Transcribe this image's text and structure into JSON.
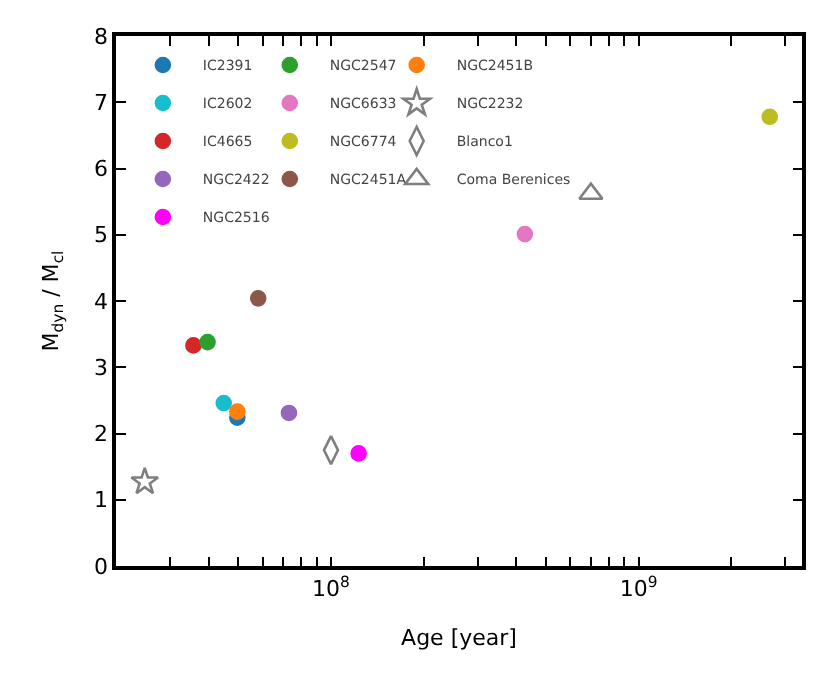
{
  "chart_data": {
    "type": "scatter",
    "xlabel": "Age [year]",
    "ylabel": "M$_{dyn}$ / M$_{cl}$",
    "log": "x",
    "legend": "top left",
    "xlim": [
      20000000.0,
      3400000000.0
    ],
    "ylim": [
      0,
      8
    ],
    "yticks": [
      0,
      1,
      2,
      3,
      4,
      5,
      6,
      7,
      8
    ],
    "xticks": [
      {
        "value": 20000000.0,
        "label": null
      },
      {
        "value": 30000000.0,
        "label": null
      },
      {
        "value": 40000000.0,
        "label": null
      },
      {
        "value": 50000000.0,
        "label": null
      },
      {
        "value": 60000000.0,
        "label": null
      },
      {
        "value": 70000000.0,
        "label": null
      },
      {
        "value": 80000000.0,
        "label": null
      },
      {
        "value": 90000000.0,
        "label": null
      },
      {
        "value": 100000000.0,
        "label": "10$^{8}$"
      },
      {
        "value": 200000000.0,
        "label": null
      },
      {
        "value": 300000000.0,
        "label": null
      },
      {
        "value": 400000000.0,
        "label": null
      },
      {
        "value": 500000000.0,
        "label": null
      },
      {
        "value": 600000000.0,
        "label": null
      },
      {
        "value": 700000000.0,
        "label": null
      },
      {
        "value": 800000000.0,
        "label": null
      },
      {
        "value": 900000000.0,
        "label": null
      },
      {
        "value": 1000000000.0,
        "label": "10$^{9}$"
      },
      {
        "value": 2000000000.0,
        "label": null
      },
      {
        "value": 3000000000.0,
        "label": null
      }
    ],
    "series": [
      {
        "name": "IC2391",
        "color": "#1f77b4",
        "marker": "circle",
        "x": [
          49600000.0
        ],
        "values": [
          2.24
        ]
      },
      {
        "name": "IC2602",
        "color": "#17becf",
        "marker": "circle",
        "x": [
          44800000.0
        ],
        "values": [
          2.46
        ]
      },
      {
        "name": "IC4665",
        "color": "#d62728",
        "marker": "circle",
        "x": [
          35700000.0
        ],
        "values": [
          3.33
        ]
      },
      {
        "name": "NGC2422",
        "color": "#9467bd",
        "marker": "circle",
        "x": [
          73000000.0
        ],
        "values": [
          2.31
        ]
      },
      {
        "name": "NGC2516",
        "color": "#ff00ff",
        "marker": "circle",
        "x": [
          123000000.0
        ],
        "values": [
          1.7
        ]
      },
      {
        "name": "NGC2547",
        "color": "#2ca02c",
        "marker": "circle",
        "x": [
          39700000.0
        ],
        "values": [
          3.38
        ]
      },
      {
        "name": "NGC6633",
        "color": "#e377c2",
        "marker": "circle",
        "x": [
          427000000.0
        ],
        "values": [
          5.01
        ]
      },
      {
        "name": "NGC6774",
        "color": "#bcbd22",
        "marker": "circle",
        "x": [
          2670000000.0
        ],
        "values": [
          6.78
        ]
      },
      {
        "name": "NGC2451A",
        "color": "#8c564b",
        "marker": "circle",
        "x": [
          58000000.0
        ],
        "values": [
          4.04
        ]
      },
      {
        "name": "NGC2451B",
        "color": "#ff7f0e",
        "marker": "circle",
        "x": [
          49600000.0
        ],
        "values": [
          2.33
        ]
      },
      {
        "name": "NGC2232",
        "color": "#7f7f7f",
        "marker": "star",
        "x": [
          24800000.0
        ],
        "values": [
          1.27
        ]
      },
      {
        "name": "Blanco1",
        "color": "#7f7f7f",
        "marker": "diamond",
        "x": [
          100000000.0
        ],
        "values": [
          1.75
        ]
      },
      {
        "name": "Coma Berenices",
        "color": "#7f7f7f",
        "marker": "triangle",
        "x": [
          700000000.0
        ],
        "values": [
          5.62
        ]
      }
    ]
  }
}
